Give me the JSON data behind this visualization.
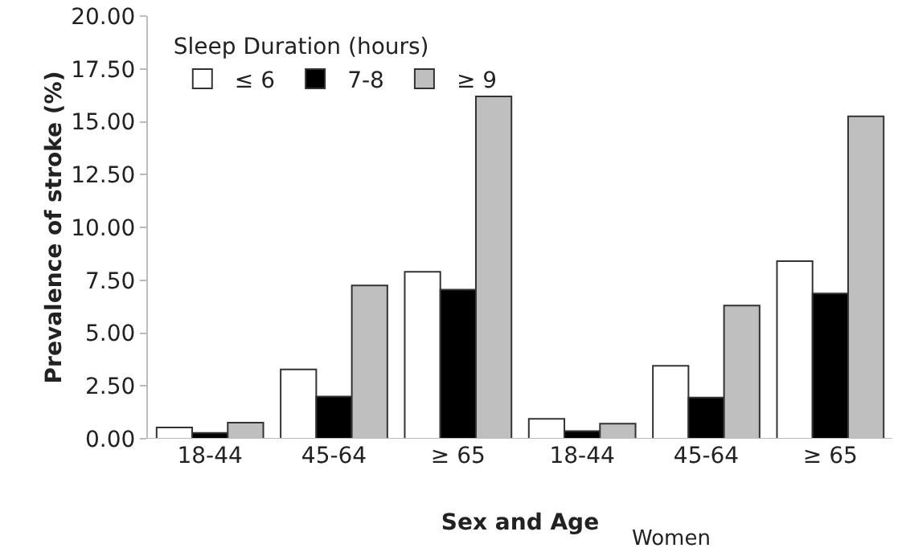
{
  "chart_data": {
    "type": "bar",
    "xlabel": "Sex and Age",
    "ylabel": "Prevalence of stroke (%)",
    "legend_title": "Sleep Duration (hours)",
    "categories": [
      "18-44",
      "45-64",
      "≥ 65",
      "18-44",
      "45-64",
      "≥ 65"
    ],
    "series": [
      {
        "name": "≤ 6",
        "color": "#ffffff",
        "values": [
          0.53,
          3.28,
          7.9,
          0.94,
          3.45,
          8.4
        ]
      },
      {
        "name": "7-8",
        "color": "#000000",
        "values": [
          0.28,
          2.0,
          7.05,
          0.36,
          1.95,
          6.87
        ]
      },
      {
        "name": "≥ 9",
        "color": "#bfbfbf",
        "values": [
          0.76,
          7.25,
          16.2,
          0.71,
          6.3,
          15.26
        ]
      }
    ],
    "ylim": [
      0,
      20
    ],
    "yticks": [
      {
        "value": 0,
        "label": "0.00"
      },
      {
        "value": 2.5,
        "label": "2.50"
      },
      {
        "value": 5,
        "label": "5.00"
      },
      {
        "value": 7.5,
        "label": "7.50"
      },
      {
        "value": 10,
        "label": "10.00"
      },
      {
        "value": 12.5,
        "label": "12.50"
      },
      {
        "value": 15,
        "label": "15.00"
      },
      {
        "value": 17.5,
        "label": "17.50"
      },
      {
        "value": 20,
        "label": "20.00"
      }
    ],
    "annotations": [
      "Women"
    ],
    "grid": false,
    "legend": "top left"
  }
}
